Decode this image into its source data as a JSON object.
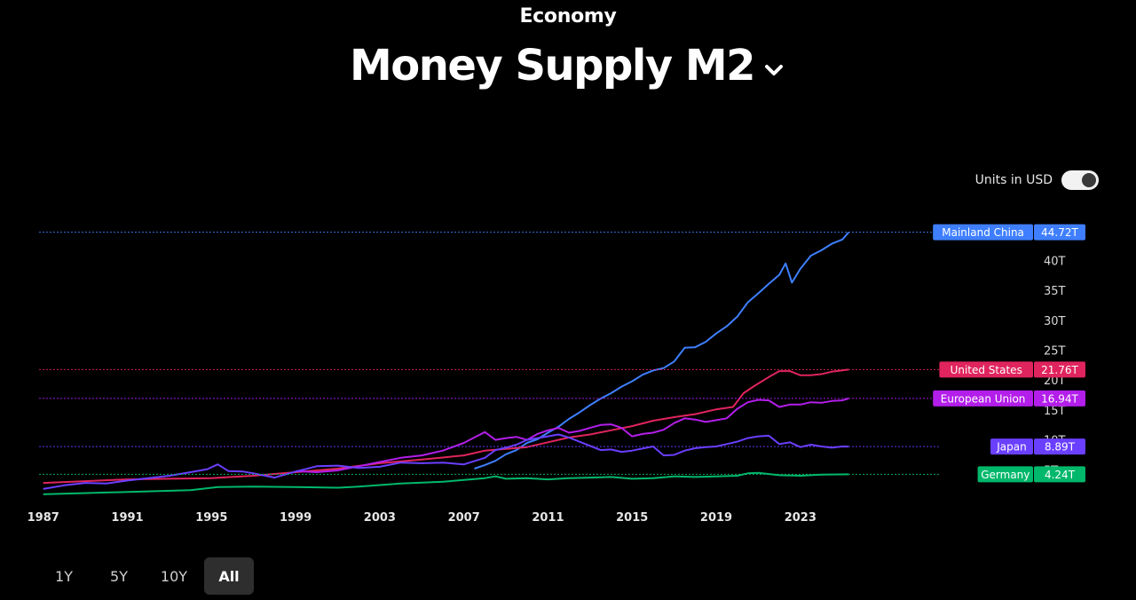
{
  "header": {
    "category": "Economy",
    "title": "Money Supply M2",
    "dropdown_icon": "chevron-down-icon"
  },
  "units_toggle": {
    "label": "Units in USD",
    "state": "on"
  },
  "range_buttons": [
    {
      "label": "1Y",
      "active": false
    },
    {
      "label": "5Y",
      "active": false
    },
    {
      "label": "10Y",
      "active": false
    },
    {
      "label": "All",
      "active": true
    }
  ],
  "chart_data": {
    "type": "line",
    "xlim": [
      1986.8,
      2026.3
    ],
    "ylim": [
      0,
      46
    ],
    "x_ticks": [
      1987,
      1991,
      1995,
      1999,
      2003,
      2007,
      2011,
      2015,
      2019,
      2023
    ],
    "y_ticks": [
      {
        "value": 40,
        "label": "40T"
      },
      {
        "value": 35,
        "label": "35T"
      },
      {
        "value": 30,
        "label": "30T"
      },
      {
        "value": 25,
        "label": "25T"
      },
      {
        "value": 20,
        "label": "20T"
      },
      {
        "value": 15,
        "label": "15T"
      },
      {
        "value": 10,
        "label": "10T"
      },
      {
        "value": 5,
        "label": "5T"
      }
    ],
    "series": [
      {
        "name": "Mainland China",
        "last_label": "44.72T",
        "color": "#3f7fff",
        "x": [
          2007.5,
          2008,
          2008.5,
          2009,
          2009.5,
          2010,
          2010.5,
          2011,
          2011.5,
          2012,
          2012.5,
          2013,
          2013.5,
          2014,
          2014.5,
          2015,
          2015.5,
          2016,
          2016.5,
          2017,
          2017.5,
          2018,
          2018.5,
          2019,
          2019.5,
          2020,
          2020.5,
          2021,
          2021.5,
          2022,
          2022.3,
          2022.6,
          2023,
          2023.5,
          2024,
          2024.5,
          2025,
          2025.3
        ],
        "y": [
          5.2,
          5.8,
          6.5,
          7.6,
          8.3,
          9.5,
          10.1,
          11.2,
          12.2,
          13.5,
          14.6,
          15.8,
          16.9,
          17.8,
          18.9,
          19.8,
          20.9,
          21.6,
          22.0,
          23.1,
          25.4,
          25.5,
          26.4,
          27.8,
          29.0,
          30.6,
          33.0,
          34.5,
          36.1,
          37.6,
          39.5,
          36.3,
          38.6,
          40.8,
          41.7,
          42.8,
          43.5,
          44.72
        ]
      },
      {
        "name": "United States",
        "last_label": "21.76T",
        "color": "#e0245e",
        "x": [
          1987,
          1989,
          1991,
          1993,
          1995,
          1997,
          1999,
          2001,
          2003,
          2005,
          2007,
          2008,
          2009,
          2010,
          2011,
          2012,
          2013,
          2014,
          2015,
          2016,
          2017,
          2018,
          2019,
          2019.8,
          2020.3,
          2020.8,
          2021.5,
          2022,
          2022.5,
          2023,
          2023.5,
          2024,
          2024.5,
          2025.3
        ],
        "y": [
          2.8,
          3.1,
          3.4,
          3.5,
          3.6,
          4.0,
          4.6,
          5.2,
          6.1,
          6.7,
          7.4,
          8.2,
          8.5,
          8.8,
          9.6,
          10.4,
          10.9,
          11.6,
          12.3,
          13.2,
          13.8,
          14.3,
          15.1,
          15.5,
          17.8,
          19.0,
          20.5,
          21.5,
          21.5,
          20.8,
          20.8,
          21.0,
          21.4,
          21.76
        ]
      },
      {
        "name": "European Union",
        "last_label": "16.94T",
        "color": "#b31eea",
        "x": [
          1999,
          2000,
          2001,
          2002,
          2003,
          2004,
          2005,
          2006,
          2007,
          2007.5,
          2008,
          2008.5,
          2009,
          2009.5,
          2010,
          2010.5,
          2011,
          2011.5,
          2012,
          2012.5,
          2013,
          2013.5,
          2014,
          2014.5,
          2015,
          2015.5,
          2016,
          2016.5,
          2017,
          2017.5,
          2018,
          2018.5,
          2019,
          2019.5,
          2020,
          2020.5,
          2021,
          2021.5,
          2022,
          2022.5,
          2023,
          2023.5,
          2024,
          2024.5,
          2025,
          2025.3
        ],
        "y": [
          4.8,
          4.6,
          4.9,
          5.6,
          6.3,
          7.0,
          7.4,
          8.2,
          9.5,
          10.4,
          11.3,
          10.0,
          10.3,
          10.5,
          10.0,
          11.0,
          11.6,
          12.0,
          11.2,
          11.5,
          12.0,
          12.5,
          12.6,
          12.0,
          10.6,
          11.0,
          11.2,
          11.7,
          12.8,
          13.6,
          13.4,
          13.0,
          13.3,
          13.6,
          15.2,
          16.3,
          16.7,
          16.6,
          15.5,
          15.9,
          15.9,
          16.3,
          16.2,
          16.5,
          16.6,
          16.94
        ]
      },
      {
        "name": "Japan",
        "last_label": "8.89T",
        "color": "#6a3fff",
        "x": [
          1987,
          1988,
          1989,
          1990,
          1991,
          1992,
          1993,
          1994,
          1994.8,
          1995.3,
          1995.8,
          1996.5,
          1997,
          1998,
          1999,
          2000,
          2001,
          2002,
          2003,
          2004,
          2005,
          2006,
          2007,
          2008,
          2008.5,
          2009,
          2009.5,
          2010,
          2011,
          2011.5,
          2012,
          2013,
          2013.5,
          2014,
          2014.5,
          2015,
          2016,
          2016.5,
          2017,
          2017.5,
          2018,
          2018.5,
          2019,
          2019.5,
          2020,
          2020.5,
          2021,
          2021.5,
          2022,
          2022.5,
          2023,
          2023.5,
          2024,
          2024.5,
          2025,
          2025.3
        ],
        "y": [
          1.8,
          2.4,
          2.8,
          2.7,
          3.2,
          3.6,
          4.0,
          4.6,
          5.1,
          5.9,
          4.8,
          4.7,
          4.4,
          3.7,
          4.7,
          5.6,
          5.7,
          5.3,
          5.5,
          6.2,
          6.1,
          6.2,
          5.9,
          7.0,
          8.3,
          8.7,
          9.2,
          10.0,
          10.6,
          10.9,
          10.4,
          9.0,
          8.3,
          8.4,
          8.0,
          8.2,
          8.9,
          7.4,
          7.5,
          8.2,
          8.6,
          8.8,
          8.9,
          9.3,
          9.7,
          10.3,
          10.6,
          10.7,
          9.3,
          9.6,
          8.8,
          9.2,
          8.9,
          8.7,
          8.9,
          8.89
        ]
      },
      {
        "name": "Germany",
        "last_label": "4.24T",
        "color": "#00b86b",
        "x": [
          1987,
          1990,
          1994,
          1995.3,
          1997,
          1999,
          2001,
          2002,
          2004,
          2006,
          2007,
          2008,
          2008.5,
          2009,
          2010,
          2011,
          2012,
          2013,
          2014,
          2015,
          2016,
          2017,
          2018,
          2019,
          2020,
          2020.5,
          2021,
          2022,
          2023,
          2024,
          2025.3
        ],
        "y": [
          0.9,
          1.2,
          1.6,
          2.1,
          2.2,
          2.1,
          2.0,
          2.2,
          2.7,
          3.0,
          3.3,
          3.6,
          3.9,
          3.5,
          3.6,
          3.4,
          3.6,
          3.7,
          3.8,
          3.5,
          3.6,
          3.9,
          3.8,
          3.9,
          4.0,
          4.4,
          4.5,
          4.1,
          4.0,
          4.2,
          4.24
        ]
      }
    ]
  }
}
